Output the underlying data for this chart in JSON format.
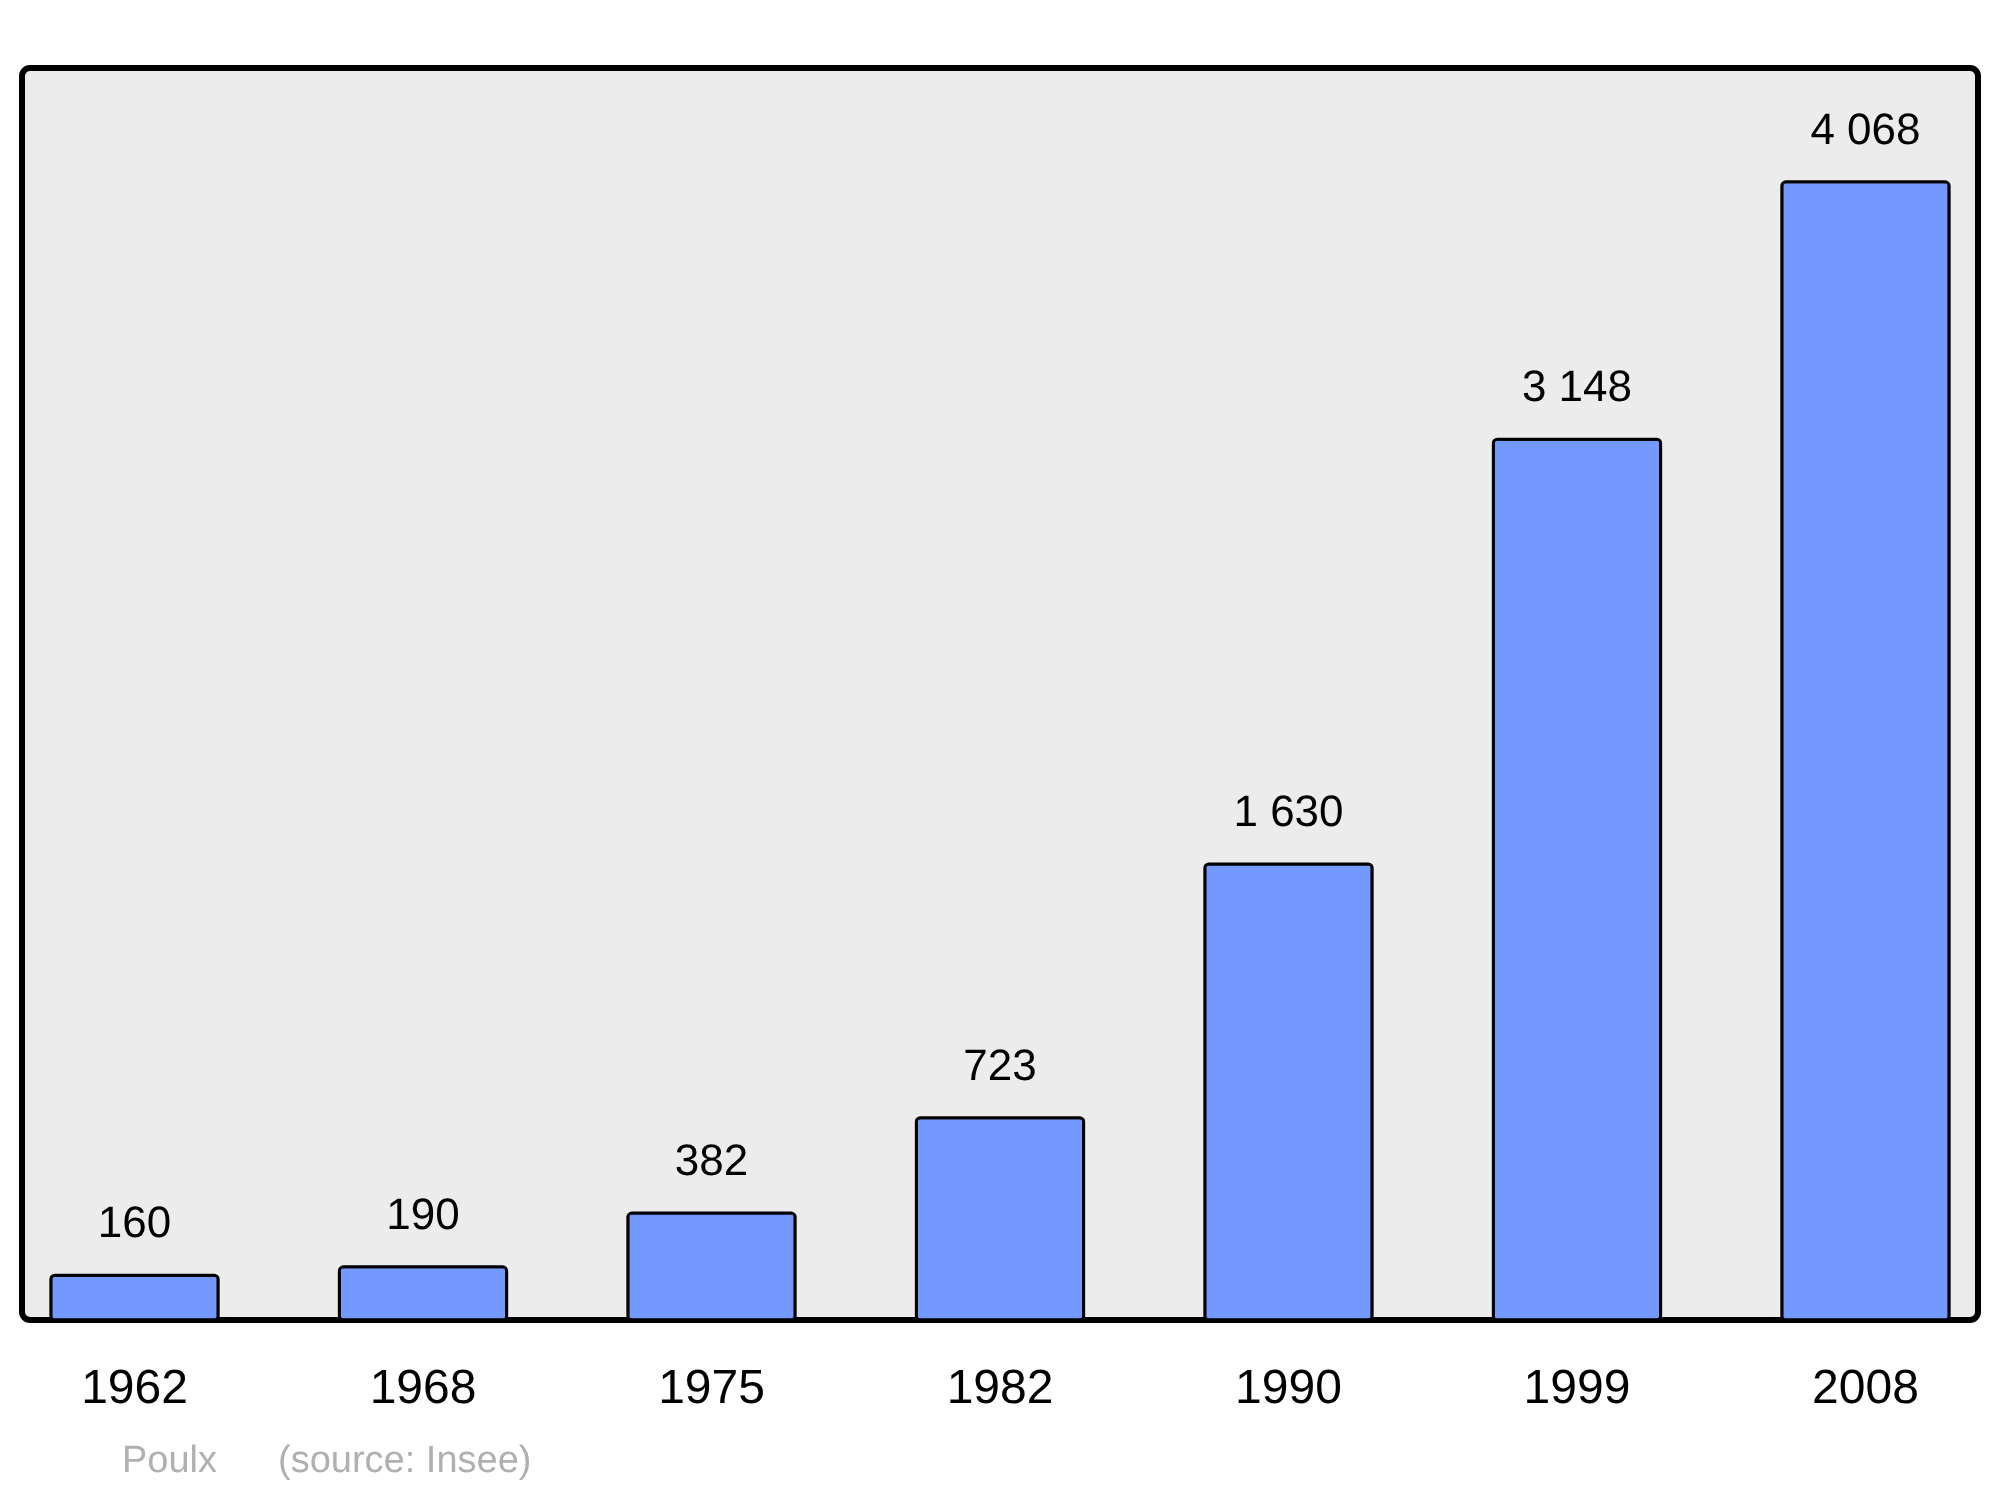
{
  "chart_data": {
    "type": "bar",
    "categories": [
      "1962",
      "1968",
      "1975",
      "1982",
      "1990",
      "1999",
      "2008"
    ],
    "values": [
      160,
      190,
      382,
      723,
      1630,
      3148,
      4068
    ],
    "value_labels": [
      "160",
      "190",
      "382",
      "723",
      "1 630",
      "3 148",
      "4 068"
    ],
    "color": "#7399ff",
    "annotations": [
      "Poulx",
      "(source: Insee)"
    ]
  }
}
